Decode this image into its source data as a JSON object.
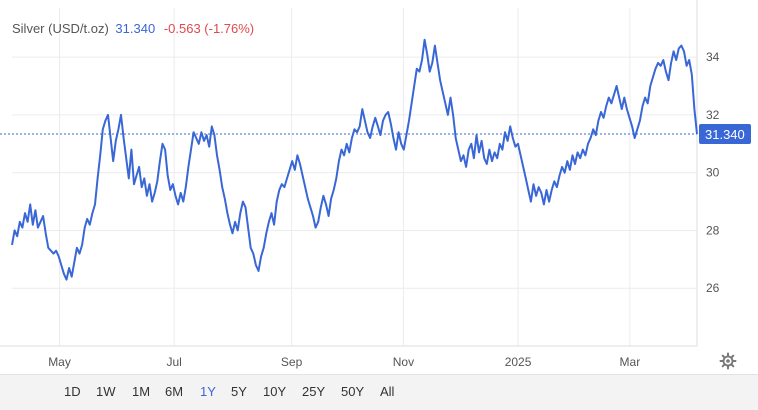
{
  "legend": {
    "name": "Silver (USD/t.oz)",
    "price": "31.340",
    "change": "-0.563 (-1.76%)"
  },
  "colors": {
    "line": "#3a67d6",
    "change_negative": "#e0484f",
    "grid": "#ececec",
    "axis_text": "#555555"
  },
  "toolbar": {
    "ranges": [
      "1D",
      "1W",
      "1M",
      "6M",
      "1Y",
      "5Y",
      "10Y",
      "25Y",
      "50Y",
      "All"
    ],
    "active": "1Y"
  },
  "settings_icon": "gear-icon",
  "chart_data": {
    "type": "line",
    "x_range": [
      0,
      245
    ],
    "ylim": [
      24,
      35.7
    ],
    "y_ticks": [
      26,
      28,
      30,
      32,
      34
    ],
    "y_tick_labels": [
      "26",
      "28",
      "30",
      "32",
      "34"
    ],
    "x_ticks": [
      {
        "label": "May",
        "x": 17
      },
      {
        "label": "Jul",
        "x": 58
      },
      {
        "label": "Sep",
        "x": 100
      },
      {
        "label": "Nov",
        "x": 140
      },
      {
        "label": "2025",
        "x": 181
      },
      {
        "label": "Mar",
        "x": 221
      }
    ],
    "last_value": 31.34,
    "last_value_label": "31.340",
    "grid": true,
    "legend_position": "top-left",
    "series": [
      {
        "values": [
          27.5,
          28.0,
          27.8,
          28.3,
          28.1,
          28.6,
          28.3,
          28.9,
          28.2,
          28.7,
          28.1,
          28.3,
          28.5,
          27.9,
          27.4,
          27.3,
          27.2,
          27.3,
          27.1,
          26.8,
          26.5,
          26.3,
          26.7,
          26.4,
          26.9,
          27.4,
          27.2,
          27.5,
          28.1,
          28.4,
          28.2,
          28.6,
          28.9,
          29.8,
          30.6,
          31.5,
          31.8,
          32.0,
          31.2,
          30.4,
          31.1,
          31.5,
          32.0,
          31.2,
          30.5,
          29.8,
          30.8,
          29.6,
          29.9,
          30.2,
          29.5,
          29.8,
          29.2,
          29.6,
          29.0,
          29.3,
          29.7,
          30.4,
          31.0,
          30.8,
          29.9,
          29.4,
          29.6,
          29.2,
          28.9,
          29.3,
          29.0,
          29.5,
          30.2,
          30.8,
          31.4,
          31.2,
          31.0,
          31.4,
          31.1,
          31.3,
          30.9,
          31.6,
          31.3,
          30.6,
          30.1,
          29.5,
          29.1,
          28.6,
          28.2,
          27.9,
          28.3,
          28.0,
          28.6,
          29.0,
          28.8,
          28.1,
          27.4,
          27.2,
          26.8,
          26.6,
          27.1,
          27.4,
          27.9,
          28.3,
          28.6,
          28.2,
          29.0,
          29.4,
          29.6,
          29.5,
          29.8,
          30.1,
          30.4,
          30.1,
          30.6,
          30.3,
          29.9,
          29.5,
          29.1,
          28.8,
          28.5,
          28.1,
          28.3,
          28.8,
          29.2,
          28.9,
          28.5,
          29.1,
          29.4,
          29.8,
          30.4,
          30.8,
          30.6,
          31.0,
          30.7,
          31.2,
          31.5,
          31.4,
          31.6,
          32.2,
          31.8,
          31.4,
          31.2,
          31.6,
          31.9,
          31.6,
          31.3,
          31.8,
          32.0,
          32.1,
          31.7,
          31.2,
          30.8,
          31.4,
          31.0,
          30.8,
          31.3,
          31.8,
          32.4,
          33.0,
          33.6,
          33.5,
          33.9,
          34.6,
          34.1,
          33.5,
          33.8,
          34.4,
          33.8,
          33.2,
          32.8,
          32.4,
          32.0,
          32.6,
          32.0,
          31.2,
          30.8,
          30.4,
          30.6,
          30.2,
          30.8,
          31.0,
          30.5,
          31.3,
          30.7,
          31.1,
          30.5,
          30.3,
          30.8,
          30.4,
          30.7,
          30.5,
          31.0,
          30.8,
          31.4,
          31.1,
          31.6,
          31.2,
          30.9,
          31.0,
          30.6,
          30.2,
          29.8,
          29.4,
          29.0,
          29.6,
          29.2,
          29.5,
          29.3,
          28.9,
          29.4,
          29.0,
          29.4,
          29.7,
          29.5,
          29.9,
          30.2,
          30.0,
          30.4,
          30.1,
          30.6,
          30.3,
          30.7,
          30.5,
          30.8,
          30.6,
          31.0,
          31.2,
          31.5,
          31.3,
          31.8,
          32.1,
          31.9,
          32.3,
          32.6,
          32.4,
          32.7,
          33.0,
          32.6,
          32.2,
          32.6,
          32.2,
          31.9,
          31.6,
          31.2,
          31.5,
          31.8,
          32.3,
          32.6,
          32.4,
          33.0,
          33.3,
          33.6,
          33.8,
          33.7,
          33.9,
          33.5,
          33.2,
          33.8,
          34.2,
          33.9,
          34.3,
          34.4,
          34.2,
          33.7,
          33.9,
          33.4,
          32.2,
          31.34
        ]
      }
    ]
  }
}
